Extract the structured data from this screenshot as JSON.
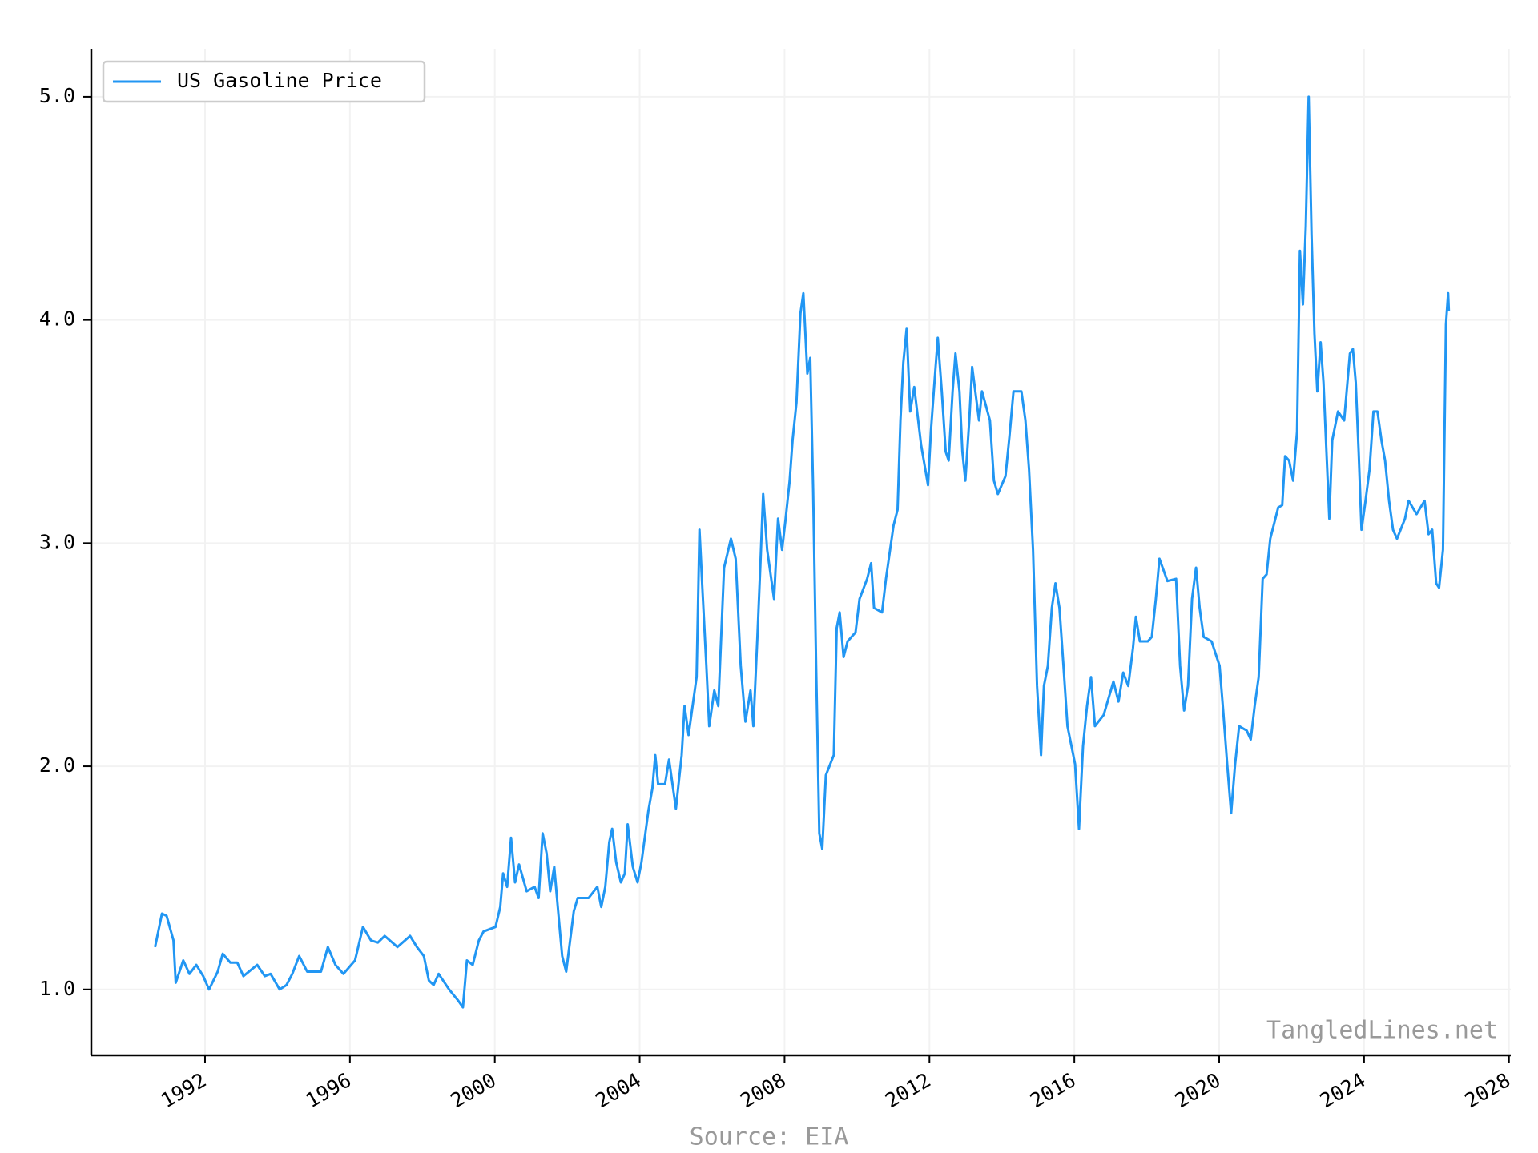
{
  "chart_data": {
    "type": "line",
    "source": "Source: EIA",
    "watermark": "TangledLines.net",
    "x": [
      1990.62,
      1990.81,
      1990.94,
      1991.13,
      1991.19,
      1991.4,
      1991.57,
      1991.76,
      1991.95,
      1992.11,
      1992.35,
      1992.49,
      1992.7,
      1992.89,
      1993.06,
      1993.44,
      1993.65,
      1993.81,
      1994.06,
      1994.25,
      1994.41,
      1994.6,
      1994.82,
      1995.2,
      1995.39,
      1995.6,
      1995.82,
      1996.14,
      1996.36,
      1996.58,
      1996.77,
      1996.96,
      1997.31,
      1997.66,
      1997.85,
      1998.04,
      1998.18,
      1998.31,
      1998.45,
      1998.74,
      1998.99,
      1999.12,
      1999.23,
      1999.39,
      1999.56,
      1999.69,
      2000.02,
      2000.15,
      2000.23,
      2000.34,
      2000.45,
      2000.56,
      2000.67,
      2000.88,
      2001.1,
      2001.21,
      2001.32,
      2001.43,
      2001.53,
      2001.64,
      2001.75,
      2001.86,
      2001.97,
      2002.18,
      2002.29,
      2002.59,
      2002.83,
      2002.94,
      2003.05,
      2003.16,
      2003.24,
      2003.35,
      2003.48,
      2003.59,
      2003.67,
      2003.81,
      2003.94,
      2004.05,
      2004.24,
      2004.35,
      2004.43,
      2004.51,
      2004.7,
      2004.81,
      2005.0,
      2005.16,
      2005.24,
      2005.35,
      2005.46,
      2005.57,
      2005.65,
      2005.73,
      2005.84,
      2005.92,
      2006.06,
      2006.17,
      2006.33,
      2006.52,
      2006.65,
      2006.79,
      2006.92,
      2007.06,
      2007.14,
      2007.25,
      2007.33,
      2007.41,
      2007.52,
      2007.71,
      2007.82,
      2007.93,
      2008.03,
      2008.14,
      2008.22,
      2008.33,
      2008.44,
      2008.52,
      2008.63,
      2008.71,
      2008.79,
      2008.87,
      2008.96,
      2009.04,
      2009.14,
      2009.36,
      2009.44,
      2009.52,
      2009.63,
      2009.74,
      2009.96,
      2010.07,
      2010.28,
      2010.39,
      2010.47,
      2010.69,
      2010.8,
      2011.01,
      2011.12,
      2011.2,
      2011.28,
      2011.37,
      2011.47,
      2011.58,
      2011.77,
      2011.96,
      2012.04,
      2012.12,
      2012.23,
      2012.34,
      2012.45,
      2012.53,
      2012.64,
      2012.72,
      2012.83,
      2012.91,
      2012.99,
      2013.1,
      2013.18,
      2013.37,
      2013.45,
      2013.67,
      2013.78,
      2013.89,
      2014.1,
      2014.21,
      2014.32,
      2014.54,
      2014.65,
      2014.75,
      2014.86,
      2014.97,
      2015.08,
      2015.16,
      2015.27,
      2015.38,
      2015.48,
      2015.59,
      2015.7,
      2015.81,
      2016.02,
      2016.13,
      2016.24,
      2016.35,
      2016.46,
      2016.57,
      2016.81,
      2017.08,
      2017.22,
      2017.35,
      2017.49,
      2017.62,
      2017.7,
      2017.81,
      2018.03,
      2018.14,
      2018.25,
      2018.35,
      2018.57,
      2018.81,
      2018.92,
      2019.03,
      2019.14,
      2019.25,
      2019.36,
      2019.46,
      2019.57,
      2019.79,
      2020.01,
      2020.11,
      2020.22,
      2020.33,
      2020.44,
      2020.55,
      2020.76,
      2020.87,
      2020.98,
      2021.09,
      2021.2,
      2021.31,
      2021.41,
      2021.63,
      2021.74,
      2021.82,
      2021.93,
      2022.04,
      2022.15,
      2022.23,
      2022.31,
      2022.39,
      2022.47,
      2022.55,
      2022.63,
      2022.71,
      2022.8,
      2022.88,
      2022.96,
      2023.04,
      2023.12,
      2023.28,
      2023.45,
      2023.61,
      2023.69,
      2023.77,
      2023.85,
      2023.93,
      2024.04,
      2024.15,
      2024.26,
      2024.37,
      2024.48,
      2024.58,
      2024.69,
      2024.8,
      2024.91,
      2025.13,
      2025.23,
      2025.45,
      2025.67,
      2025.78,
      2025.88,
      2025.99,
      2026.07,
      2026.18,
      2026.26,
      2026.32,
      2026.34
    ],
    "series": [
      {
        "name": "US Gasoline Price",
        "color": "#2196f3",
        "values": [
          1.19,
          1.34,
          1.33,
          1.22,
          1.03,
          1.13,
          1.07,
          1.11,
          1.06,
          1.0,
          1.08,
          1.16,
          1.12,
          1.12,
          1.06,
          1.11,
          1.06,
          1.07,
          1.0,
          1.02,
          1.07,
          1.15,
          1.08,
          1.08,
          1.19,
          1.11,
          1.07,
          1.13,
          1.28,
          1.22,
          1.21,
          1.24,
          1.19,
          1.24,
          1.19,
          1.15,
          1.04,
          1.02,
          1.07,
          1.0,
          0.95,
          0.92,
          1.13,
          1.11,
          1.22,
          1.26,
          1.28,
          1.37,
          1.52,
          1.46,
          1.68,
          1.48,
          1.56,
          1.44,
          1.46,
          1.41,
          1.7,
          1.61,
          1.44,
          1.55,
          1.35,
          1.15,
          1.08,
          1.35,
          1.41,
          1.41,
          1.46,
          1.37,
          1.46,
          1.66,
          1.72,
          1.57,
          1.48,
          1.52,
          1.74,
          1.55,
          1.48,
          1.57,
          1.8,
          1.9,
          2.05,
          1.92,
          1.92,
          2.03,
          1.81,
          2.05,
          2.27,
          2.14,
          2.27,
          2.4,
          3.06,
          2.8,
          2.45,
          2.18,
          2.34,
          2.27,
          2.89,
          3.02,
          2.93,
          2.45,
          2.2,
          2.34,
          2.18,
          2.58,
          2.89,
          3.22,
          2.97,
          2.75,
          3.11,
          2.97,
          3.11,
          3.28,
          3.46,
          3.63,
          4.03,
          4.12,
          3.76,
          3.83,
          3.24,
          2.45,
          1.7,
          1.63,
          1.96,
          2.05,
          2.62,
          2.69,
          2.49,
          2.56,
          2.6,
          2.75,
          2.84,
          2.91,
          2.71,
          2.69,
          2.84,
          3.08,
          3.15,
          3.55,
          3.81,
          3.96,
          3.59,
          3.7,
          3.44,
          3.26,
          3.5,
          3.68,
          3.92,
          3.68,
          3.41,
          3.37,
          3.68,
          3.85,
          3.68,
          3.41,
          3.28,
          3.55,
          3.79,
          3.55,
          3.68,
          3.55,
          3.28,
          3.22,
          3.3,
          3.48,
          3.68,
          3.68,
          3.55,
          3.33,
          2.97,
          2.36,
          2.05,
          2.36,
          2.45,
          2.71,
          2.82,
          2.71,
          2.45,
          2.18,
          2.01,
          1.72,
          2.09,
          2.27,
          2.4,
          2.18,
          2.23,
          2.38,
          2.29,
          2.42,
          2.36,
          2.53,
          2.67,
          2.56,
          2.56,
          2.58,
          2.75,
          2.93,
          2.83,
          2.84,
          2.45,
          2.25,
          2.36,
          2.75,
          2.89,
          2.71,
          2.58,
          2.56,
          2.45,
          2.25,
          2.01,
          1.79,
          2.01,
          2.18,
          2.16,
          2.12,
          2.27,
          2.4,
          2.84,
          2.86,
          3.02,
          3.16,
          3.17,
          3.39,
          3.37,
          3.28,
          3.5,
          4.31,
          4.07,
          4.42,
          5.0,
          4.38,
          3.94,
          3.68,
          3.9,
          3.72,
          3.41,
          3.11,
          3.46,
          3.59,
          3.55,
          3.85,
          3.87,
          3.72,
          3.41,
          3.06,
          3.19,
          3.33,
          3.59,
          3.59,
          3.46,
          3.37,
          3.19,
          3.06,
          3.02,
          3.11,
          3.19,
          3.13,
          3.19,
          3.04,
          3.06,
          2.82,
          2.8,
          2.97,
          3.98,
          4.12,
          4.04
        ]
      }
    ],
    "xlim": [
      1988.86,
      2028.05
    ],
    "ylim": [
      0.705,
      5.215
    ],
    "xticks": [
      1992,
      1996,
      2000,
      2004,
      2008,
      2012,
      2016,
      2020,
      2024,
      2028
    ],
    "yticks": [
      {
        "value": 1,
        "label": "1.0"
      },
      {
        "value": 2,
        "label": "2.0"
      },
      {
        "value": 3,
        "label": "3.0"
      },
      {
        "value": 4,
        "label": "4.0"
      },
      {
        "value": 5,
        "label": "5.0"
      }
    ],
    "grid": true,
    "legend": "upper left"
  }
}
